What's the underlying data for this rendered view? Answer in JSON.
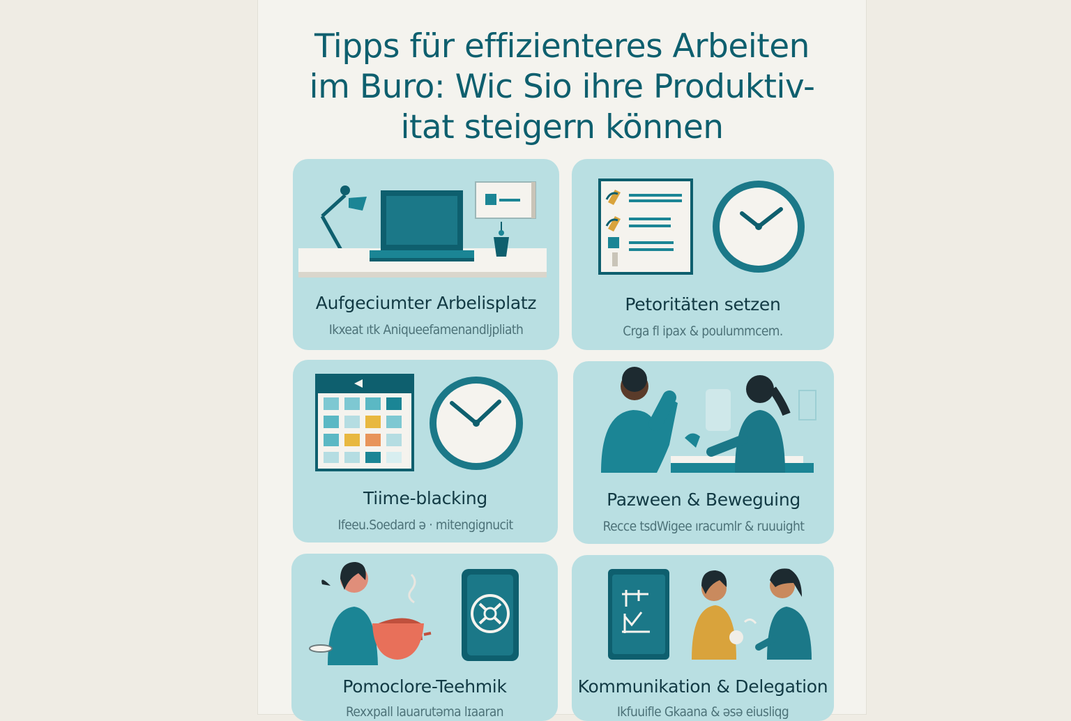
{
  "poster": {
    "title_lines": [
      "Tipps für effizienteres Arbeiten",
      "im Buro: Wic Sio ihre Produktiv-",
      "itat steigern können"
    ]
  },
  "colors": {
    "teal_dark": "#0e5f6e",
    "teal": "#1b8595",
    "card_bg": "#b9dfe2",
    "orange": "#e8705a",
    "yellow": "#e8b840",
    "mustard": "#d9a33c"
  },
  "cards": [
    {
      "title": "Aufgeciumter Arbelisplatz",
      "subtitle": "Ikxeat ıtk Aniqueefamenandljpliath",
      "icons": [
        "desk-lamp-icon",
        "laptop-icon",
        "note-card-icon",
        "plant-cup-icon"
      ]
    },
    {
      "title": "Petoritäten setzen",
      "subtitle": "Crga fl ipax & poulummcem.",
      "icons": [
        "checklist-icon",
        "wall-clock-icon"
      ]
    },
    {
      "title": "Tiime-blacking",
      "subtitle": "Ifeeu.Soedard ə · mitengignucit",
      "icons": [
        "calendar-icon",
        "wall-clock-icon"
      ]
    },
    {
      "title": "Pazween & Beweguing",
      "subtitle": "Recce tsdWigee ıracumlr & ruuuight",
      "icons": [
        "person-stretching-icon",
        "person-desk-icon"
      ]
    },
    {
      "title": "Pomoclore-Teehmik",
      "subtitle": "Rexxpall lauarutəma lɪaaran",
      "icons": [
        "person-icon",
        "teapot-icon",
        "phone-timer-icon"
      ]
    },
    {
      "title": "Kommunikation & Delegation",
      "subtitle": "Ikfuuifle Gkaana & əsə eiusliqg",
      "icons": [
        "tablet-checklist-icon",
        "two-people-talking-icon"
      ]
    }
  ]
}
